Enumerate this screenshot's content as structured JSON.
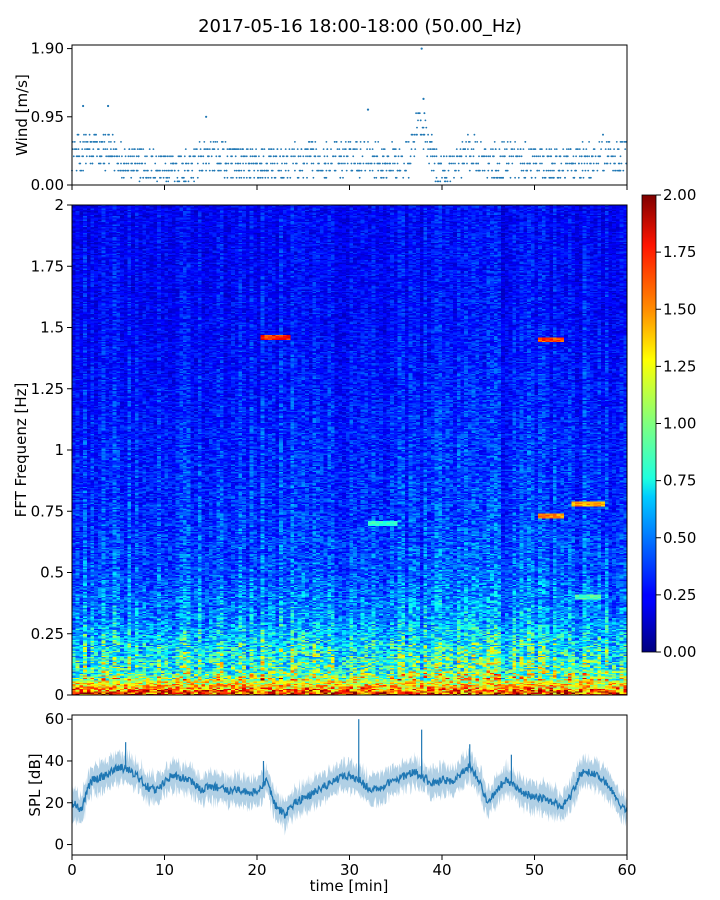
{
  "figure": {
    "title": "2017-05-16 18:00-18:00 (50.00_Hz)"
  },
  "chart_data": [
    {
      "panel": "wind",
      "type": "scatter",
      "ylabel": "Wind [m/s]",
      "xlim": [
        0,
        60
      ],
      "ylim": [
        0,
        1.95
      ],
      "yticks": [
        0.0,
        0.95,
        1.9
      ],
      "ytick_labels": [
        "0.00",
        "0.95",
        "1.90"
      ],
      "point_color": "#1f77b4",
      "resolution": 0.1,
      "series": [
        {
          "values": [
            [
              0,
              0.4
            ],
            [
              2,
              0.5
            ],
            [
              4,
              0.45
            ],
            [
              6,
              0.35
            ],
            [
              8,
              0.25
            ],
            [
              10,
              0.25
            ],
            [
              12,
              0.2
            ],
            [
              14,
              0.35
            ],
            [
              15,
              0.4
            ],
            [
              17,
              0.35
            ],
            [
              19,
              0.3
            ],
            [
              21,
              0.3
            ],
            [
              23,
              0.3
            ],
            [
              25,
              0.35
            ],
            [
              27,
              0.35
            ],
            [
              29,
              0.35
            ],
            [
              31,
              0.4
            ],
            [
              33,
              0.35
            ],
            [
              35,
              0.35
            ],
            [
              36.5,
              0.35
            ],
            [
              37.5,
              0.95
            ],
            [
              38.5,
              0.6
            ],
            [
              39.5,
              0.2
            ],
            [
              41,
              0.2
            ],
            [
              42.5,
              0.45
            ],
            [
              44,
              0.4
            ],
            [
              46,
              0.3
            ],
            [
              48,
              0.35
            ],
            [
              50,
              0.3
            ],
            [
              52,
              0.3
            ],
            [
              54,
              0.3
            ],
            [
              56,
              0.35
            ],
            [
              58,
              0.45
            ],
            [
              60,
              0.4
            ]
          ],
          "outliers": [
            [
              1.2,
              1.1
            ],
            [
              3.9,
              1.1
            ],
            [
              14.5,
              0.95
            ],
            [
              37.8,
              1.9
            ],
            [
              38.0,
              1.2
            ],
            [
              32.0,
              1.05
            ]
          ]
        }
      ]
    },
    {
      "panel": "spectrogram",
      "type": "heatmap",
      "ylabel": "FFT Frequenz [Hz]",
      "xlim": [
        0,
        60
      ],
      "ylim": [
        0,
        2
      ],
      "yticks": [
        0,
        0.25,
        0.5,
        0.75,
        1,
        1.25,
        1.5,
        1.75,
        2
      ],
      "ytick_labels": [
        "0",
        "0.25",
        "0.5",
        "0.75",
        "1",
        "1.25",
        "1.5",
        "1.75",
        "2"
      ],
      "colormap": "jet",
      "value_range": [
        0,
        2
      ],
      "colorbar_ticks": [
        0.0,
        0.25,
        0.5,
        0.75,
        1.0,
        1.25,
        1.5,
        1.75,
        2.0
      ],
      "colorbar_tick_labels": [
        "0.00",
        "0.25",
        "0.50",
        "0.75",
        "1.00",
        "1.25",
        "1.50",
        "1.75",
        "2.00"
      ],
      "intensity_profile": [
        [
          0.0,
          1.7
        ],
        [
          0.05,
          1.2
        ],
        [
          0.1,
          0.9
        ],
        [
          0.2,
          0.75
        ],
        [
          0.3,
          0.55
        ],
        [
          0.5,
          0.42
        ],
        [
          0.75,
          0.36
        ],
        [
          1.0,
          0.33
        ],
        [
          1.5,
          0.27
        ],
        [
          2.0,
          0.25
        ]
      ],
      "highlights": [
        {
          "t_start": 20.5,
          "t_end": 23.5,
          "f": 1.46,
          "value": 1.7
        },
        {
          "t_start": 50.5,
          "t_end": 53.0,
          "f": 1.45,
          "value": 1.6
        },
        {
          "t_start": 50.5,
          "t_end": 53.0,
          "f": 0.73,
          "value": 1.5
        },
        {
          "t_start": 32.0,
          "t_end": 35.0,
          "f": 0.7,
          "value": 0.85
        },
        {
          "t_start": 54.5,
          "t_end": 57.0,
          "f": 0.4,
          "value": 0.9
        },
        {
          "t_start": 54.0,
          "t_end": 57.5,
          "f": 0.78,
          "value": 1.4
        }
      ]
    },
    {
      "panel": "spl",
      "type": "line",
      "xlabel": "time [min]",
      "ylabel": "SPL [dB]",
      "xlim": [
        0,
        60
      ],
      "ylim": [
        -5,
        62
      ],
      "xticks": [
        0,
        10,
        20,
        30,
        40,
        50,
        60
      ],
      "xtick_labels": [
        "0",
        "10",
        "20",
        "30",
        "40",
        "50",
        "60"
      ],
      "yticks": [
        0,
        20,
        40,
        60
      ],
      "ytick_labels": [
        "0",
        "20",
        "40",
        "60"
      ],
      "line_color": "#1f77b4",
      "series": [
        {
          "values": [
            [
              0,
              20
            ],
            [
              1,
              17
            ],
            [
              2,
              30
            ],
            [
              4,
              34
            ],
            [
              5,
              37
            ],
            [
              6,
              36
            ],
            [
              7,
              33
            ],
            [
              8,
              28
            ],
            [
              9,
              26
            ],
            [
              10,
              30
            ],
            [
              11,
              33
            ],
            [
              12,
              32
            ],
            [
              13,
              30
            ],
            [
              14,
              26
            ],
            [
              15,
              28
            ],
            [
              16,
              27
            ],
            [
              17,
              25
            ],
            [
              18,
              27
            ],
            [
              19,
              24
            ],
            [
              20,
              26
            ],
            [
              21,
              30
            ],
            [
              22,
              19
            ],
            [
              23,
              14
            ],
            [
              24,
              20
            ],
            [
              25,
              22
            ],
            [
              26,
              24
            ],
            [
              27,
              27
            ],
            [
              28,
              30
            ],
            [
              29,
              32
            ],
            [
              30,
              33
            ],
            [
              31,
              31
            ],
            [
              32,
              27
            ],
            [
              33,
              27
            ],
            [
              34,
              29
            ],
            [
              35,
              31
            ],
            [
              36,
              33
            ],
            [
              37,
              35
            ],
            [
              38,
              32
            ],
            [
              39,
              29
            ],
            [
              40,
              31
            ],
            [
              41,
              30
            ],
            [
              42,
              34
            ],
            [
              43,
              38
            ],
            [
              44,
              30
            ],
            [
              45,
              20
            ],
            [
              46,
              27
            ],
            [
              47,
              31
            ],
            [
              48,
              28
            ],
            [
              49,
              24
            ],
            [
              50,
              23
            ],
            [
              51,
              22
            ],
            [
              52,
              20
            ],
            [
              53,
              18
            ],
            [
              54,
              24
            ],
            [
              55,
              34
            ],
            [
              56,
              35
            ],
            [
              57,
              33
            ],
            [
              58,
              28
            ],
            [
              59,
              20
            ],
            [
              60,
              16
            ]
          ],
          "peaks": [
            [
              5.8,
              49
            ],
            [
              20.7,
              40
            ],
            [
              37.8,
              55
            ],
            [
              43.0,
              48
            ],
            [
              47.5,
              43
            ],
            [
              31.0,
              60
            ]
          ]
        }
      ]
    }
  ]
}
